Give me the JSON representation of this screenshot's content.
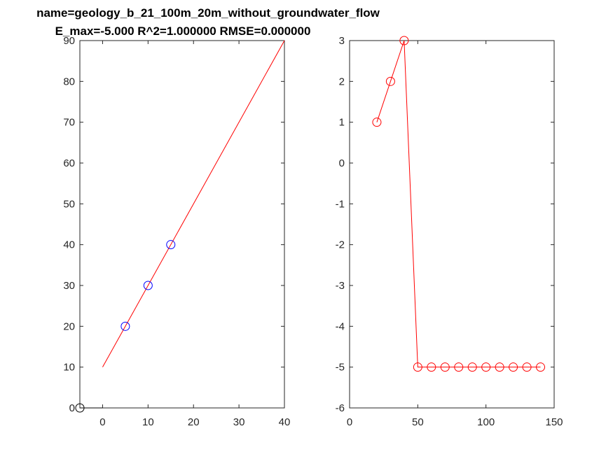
{
  "figure": {
    "title_line1": "name=geology_b_21_100m_20m_without_groundwater_flow",
    "title_line2": "E_max=-5.000 R^2=1.000000 RMSE=0.000000"
  },
  "chart_data": [
    {
      "type": "scatter",
      "xlim": [
        -5,
        40
      ],
      "ylim": [
        0,
        90
      ],
      "xticks": [
        0,
        10,
        20,
        30,
        40
      ],
      "yticks": [
        0,
        10,
        20,
        30,
        40,
        50,
        60,
        70,
        80,
        90
      ],
      "x_tick_labels": [
        "0",
        "10",
        "20",
        "30",
        "40"
      ],
      "y_tick_labels": [
        "0",
        "10",
        "20",
        "30",
        "40",
        "50",
        "60",
        "70",
        "80",
        "90"
      ],
      "grid": false,
      "points_blue": {
        "color": "#0000ff",
        "x": [
          5,
          10,
          15
        ],
        "y": [
          20,
          30,
          40
        ]
      },
      "point_black": {
        "color": "#000000",
        "x": [
          -5
        ],
        "y": [
          0
        ]
      },
      "fit_line": {
        "color": "#ff0000",
        "x": [
          0,
          40
        ],
        "y": [
          10,
          90
        ]
      },
      "baseline": {
        "color": "#000000",
        "x": [
          -5,
          0
        ],
        "y": [
          0,
          0
        ]
      }
    },
    {
      "type": "line",
      "xlim": [
        0,
        150
      ],
      "ylim": [
        -6,
        3
      ],
      "xticks": [
        0,
        50,
        100,
        150
      ],
      "yticks": [
        -6,
        -5,
        -4,
        -3,
        -2,
        -1,
        0,
        1,
        2,
        3
      ],
      "x_tick_labels": [
        "0",
        "50",
        "100",
        "150"
      ],
      "y_tick_labels": [
        "-6",
        "-5",
        "-4",
        "-3",
        "-2",
        "-1",
        "0",
        "1",
        "2",
        "3"
      ],
      "grid": false,
      "series": [
        {
          "color": "#ff0000",
          "marker": "circle",
          "x": [
            20,
            30,
            40,
            50,
            60,
            70,
            80,
            90,
            100,
            110,
            120,
            130,
            140
          ],
          "y": [
            1,
            2,
            3,
            -5,
            -5,
            -5,
            -5,
            -5,
            -5,
            -5,
            -5,
            -5,
            -5
          ]
        }
      ]
    }
  ]
}
